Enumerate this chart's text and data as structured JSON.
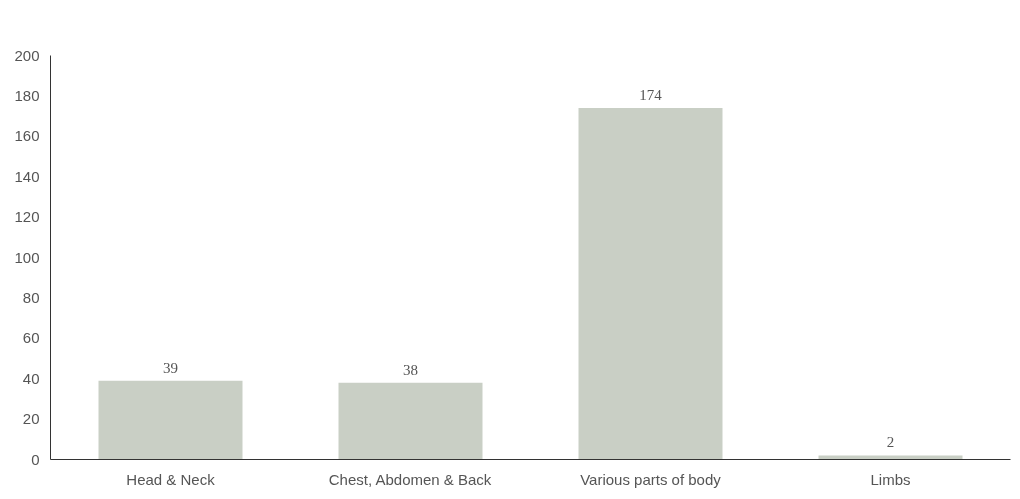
{
  "chart_data": {
    "type": "bar",
    "categories": [
      "Head & Neck",
      "Chest, Abdomen & Back",
      "Various parts of body",
      "Limbs"
    ],
    "values": [
      39,
      38,
      174,
      2
    ],
    "color": "#c9cfc5",
    "ylim": [
      0,
      200
    ],
    "yticks": [
      0,
      20,
      40,
      60,
      80,
      100,
      120,
      140,
      160,
      180,
      200
    ],
    "data_labels": true
  }
}
